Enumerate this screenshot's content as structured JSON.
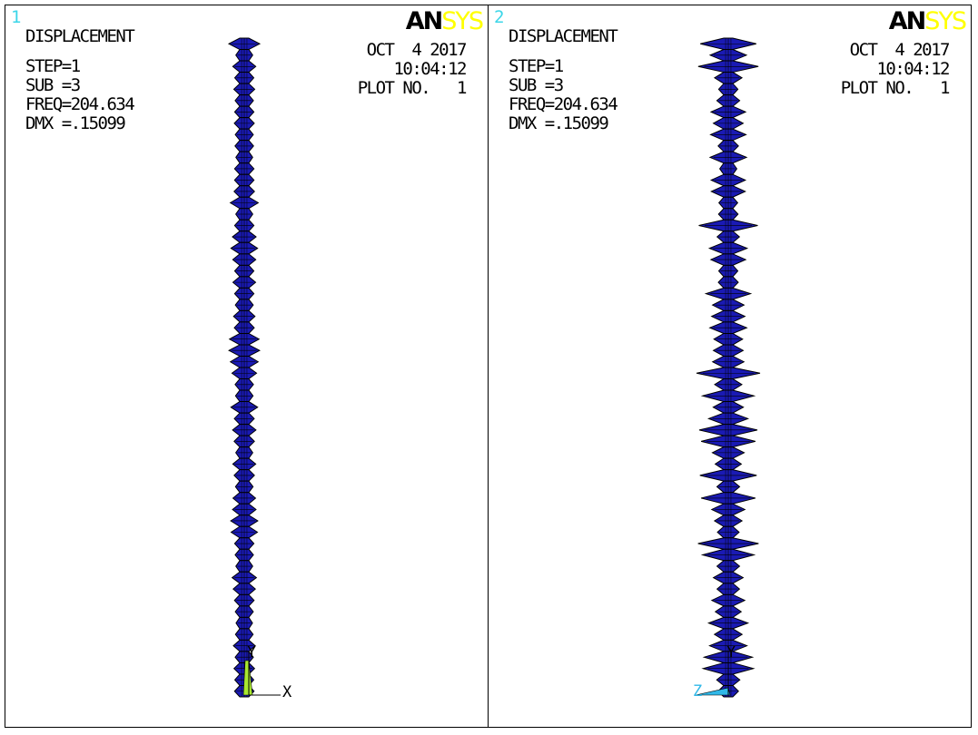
{
  "panels": [
    {
      "window_number": "1",
      "title": "DISPLACEMENT",
      "step": "STEP=1",
      "sub": "SUB =3",
      "freq": "FREQ=204.634",
      "dmx": "DMX =.15099",
      "date": "OCT  4 2017",
      "time": "10:04:12",
      "plot_no": "PLOT NO.   1",
      "logo_an": "AN",
      "logo_sys": "SYS",
      "axis_labels": [
        "Y",
        "X"
      ]
    },
    {
      "window_number": "2",
      "title": "DISPLACEMENT",
      "step": "STEP=1",
      "sub": "SUB =3",
      "freq": "FREQ=204.634",
      "dmx": "DMX =.15099",
      "date": "OCT  4 2017",
      "time": "10:04:12",
      "plot_no": "PLOT NO.   1",
      "logo_an": "AN",
      "logo_sys": "SYS",
      "axis_labels": [
        "Y",
        "Z"
      ]
    }
  ],
  "colors": {
    "mesh_fill": "#1a1ab4",
    "mesh_edge": "#000000",
    "window_number": "#3cd6e8",
    "logo_accent": "#ffff00",
    "triad_x": "#a8e830",
    "triad_z": "#30b8e8"
  }
}
